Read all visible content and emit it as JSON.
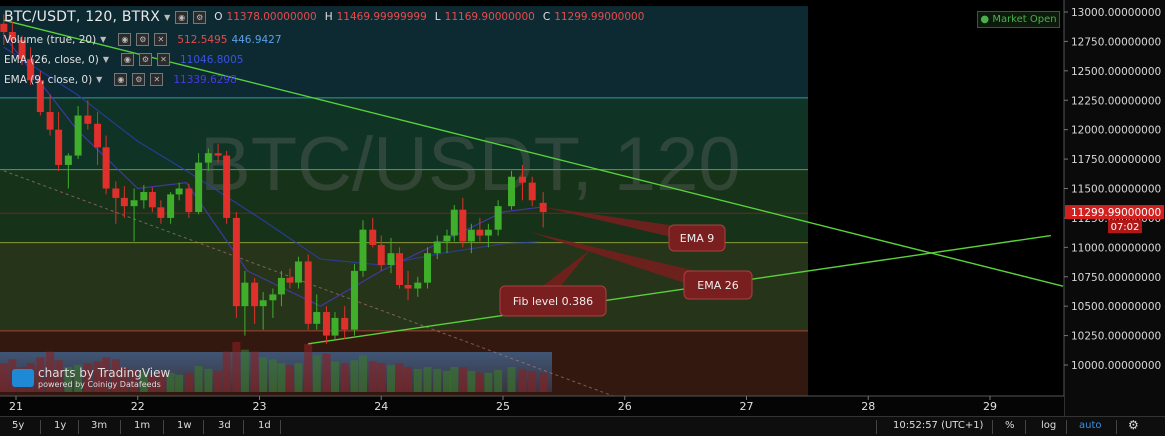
{
  "header": {
    "symbol": "BTC/USDT, 120, BTRX",
    "ohlc": {
      "o_label": "O",
      "o": "11378.00000000",
      "h_label": "H",
      "h": "11469.99999999",
      "l_label": "L",
      "l": "11169.90000000",
      "c_label": "C",
      "c": "11299.99000000"
    }
  },
  "indicators": [
    {
      "label": "Volume (true, 20)",
      "values": [
        "512.5495",
        "446.9427"
      ]
    },
    {
      "label": "EMA (26, close, 0)",
      "values": [
        "11046.8005"
      ]
    },
    {
      "label": "EMA (9, close, 0)",
      "values": [
        "11339.6298"
      ]
    }
  ],
  "market_status": "Market Open",
  "watermark_symbol": "BTC/USDT, 120",
  "price_axis": {
    "ticks": [
      "13000.00000000",
      "12750.00000000",
      "12500.00000000",
      "12250.00000000",
      "12000.00000000",
      "11750.00000000",
      "11500.00000000",
      "11250.00000000",
      "11000.00000000",
      "10750.00000000",
      "10500.00000000",
      "10250.00000000",
      "10000.00000000"
    ],
    "current_price": "11299.99000000",
    "countdown": "07:02"
  },
  "time_axis": {
    "ticks": [
      "21",
      "22",
      "23",
      "24",
      "25",
      "26",
      "27",
      "28",
      "29"
    ]
  },
  "annotations": [
    {
      "text": "EMA 9"
    },
    {
      "text": "EMA 26"
    },
    {
      "text": "Fib level 0.386"
    }
  ],
  "attribution": {
    "line1": "charts by TradingView",
    "line2": "powered by Coinigy Datafeeds"
  },
  "bottom_bar": {
    "ranges": [
      "5y",
      "1y",
      "3m",
      "1m",
      "1w",
      "3d",
      "1d"
    ],
    "clock": "10:52:57 (UTC+1)",
    "percent": "%",
    "log": "log",
    "auto": "auto",
    "settings_icon": "gear-icon"
  },
  "colors": {
    "up": "#3fae2a",
    "down": "#e0302b",
    "trendline": "#59d23a",
    "current_price_bg": "#d02020",
    "annotation_bg": "#7a1f1f"
  },
  "chart_data": {
    "type": "candlestick",
    "title": "BTC/USDT, 120, BTRX",
    "ylim": [
      9700,
      13050
    ],
    "x_ticks": [
      "21",
      "22",
      "23",
      "24",
      "25",
      "26",
      "27",
      "28",
      "29"
    ],
    "fib_levels": [
      12270,
      11660,
      11040,
      10290
    ],
    "candles": [
      [
        20.9,
        12900,
        12980,
        12720,
        12830
      ],
      [
        20.97,
        12830,
        12920,
        12650,
        12760
      ],
      [
        21.05,
        12760,
        12800,
        12550,
        12600
      ],
      [
        21.12,
        12600,
        12700,
        12380,
        12420
      ],
      [
        21.2,
        12420,
        12500,
        12120,
        12150
      ],
      [
        21.28,
        12150,
        12300,
        11950,
        12000
      ],
      [
        21.35,
        12000,
        12150,
        11650,
        11700
      ],
      [
        21.43,
        11700,
        11800,
        11500,
        11780
      ],
      [
        21.51,
        11780,
        12200,
        11750,
        12120
      ],
      [
        21.59,
        12120,
        12250,
        12000,
        12050
      ],
      [
        21.67,
        12050,
        12150,
        11700,
        11850
      ],
      [
        21.74,
        11850,
        11950,
        11450,
        11500
      ],
      [
        21.82,
        11500,
        11560,
        11200,
        11420
      ],
      [
        21.89,
        11420,
        11520,
        11250,
        11350
      ],
      [
        21.97,
        11350,
        11500,
        11050,
        11400
      ],
      [
        22.05,
        11400,
        11530,
        11330,
        11470
      ],
      [
        22.12,
        11470,
        11510,
        11300,
        11340
      ],
      [
        22.19,
        11340,
        11400,
        11200,
        11250
      ],
      [
        22.27,
        11250,
        11470,
        11200,
        11450
      ],
      [
        22.34,
        11450,
        11550,
        11400,
        11500
      ],
      [
        22.42,
        11500,
        11540,
        11250,
        11300
      ],
      [
        22.5,
        11300,
        11800,
        11280,
        11720
      ],
      [
        22.58,
        11720,
        11840,
        11650,
        11800
      ],
      [
        22.66,
        11800,
        11880,
        11720,
        11780
      ],
      [
        22.73,
        11780,
        11820,
        11200,
        11250
      ],
      [
        22.81,
        11250,
        11300,
        10400,
        10500
      ],
      [
        22.88,
        10500,
        10800,
        10250,
        10700
      ],
      [
        22.96,
        10700,
        10740,
        10350,
        10500
      ],
      [
        23.03,
        10500,
        10620,
        10300,
        10550
      ],
      [
        23.11,
        10550,
        10650,
        10400,
        10600
      ],
      [
        23.18,
        10600,
        10800,
        10500,
        10740
      ],
      [
        23.25,
        10740,
        10820,
        10650,
        10700
      ],
      [
        23.32,
        10700,
        10920,
        10650,
        10880
      ],
      [
        23.4,
        10880,
        10940,
        10300,
        10350
      ],
      [
        23.47,
        10350,
        10600,
        10300,
        10450
      ],
      [
        23.55,
        10450,
        10500,
        10180,
        10250
      ],
      [
        23.62,
        10250,
        10450,
        10220,
        10400
      ],
      [
        23.7,
        10400,
        10500,
        10220,
        10300
      ],
      [
        23.78,
        10300,
        10860,
        10250,
        10800
      ],
      [
        23.85,
        10800,
        11230,
        10750,
        11150
      ],
      [
        23.93,
        11150,
        11250,
        11000,
        11020
      ],
      [
        24.0,
        11020,
        11100,
        10800,
        10850
      ],
      [
        24.08,
        10850,
        11080,
        10780,
        10950
      ],
      [
        24.15,
        10950,
        11000,
        10650,
        10680
      ],
      [
        24.22,
        10680,
        10800,
        10550,
        10650
      ],
      [
        24.3,
        10650,
        10750,
        10580,
        10700
      ],
      [
        24.38,
        10700,
        11000,
        10650,
        10950
      ],
      [
        24.46,
        10950,
        11100,
        10900,
        11050
      ],
      [
        24.54,
        11050,
        11150,
        10950,
        11100
      ],
      [
        24.6,
        11100,
        11360,
        11050,
        11320
      ],
      [
        24.67,
        11320,
        11420,
        11000,
        11050
      ],
      [
        24.74,
        11050,
        11200,
        10950,
        11150
      ],
      [
        24.81,
        11150,
        11250,
        11050,
        11100
      ],
      [
        24.88,
        11100,
        11200,
        11000,
        11150
      ],
      [
        24.96,
        11150,
        11400,
        11100,
        11350
      ],
      [
        25.07,
        11350,
        11650,
        11320,
        11600
      ],
      [
        25.16,
        11600,
        11700,
        11400,
        11550
      ],
      [
        25.24,
        11550,
        11600,
        11350,
        11400
      ],
      [
        25.33,
        11378,
        11469,
        11169,
        11300
      ]
    ],
    "volume": [
      [
        20.9,
        300,
        "down"
      ],
      [
        20.97,
        340,
        "down"
      ],
      [
        21.05,
        260,
        "down"
      ],
      [
        21.12,
        300,
        "down"
      ],
      [
        21.2,
        360,
        "down"
      ],
      [
        21.28,
        420,
        "down"
      ],
      [
        21.35,
        330,
        "down"
      ],
      [
        21.43,
        260,
        "up"
      ],
      [
        21.51,
        280,
        "up"
      ],
      [
        21.59,
        300,
        "down"
      ],
      [
        21.67,
        320,
        "down"
      ],
      [
        21.74,
        360,
        "down"
      ],
      [
        21.82,
        340,
        "down"
      ],
      [
        21.89,
        250,
        "down"
      ],
      [
        21.97,
        230,
        "down"
      ],
      [
        22.05,
        210,
        "up"
      ],
      [
        22.12,
        180,
        "down"
      ],
      [
        22.19,
        220,
        "down"
      ],
      [
        22.27,
        200,
        "up"
      ],
      [
        22.34,
        180,
        "up"
      ],
      [
        22.42,
        200,
        "down"
      ],
      [
        22.5,
        270,
        "up"
      ],
      [
        22.58,
        240,
        "up"
      ],
      [
        22.66,
        220,
        "down"
      ],
      [
        22.73,
        420,
        "down"
      ],
      [
        22.81,
        520,
        "down"
      ],
      [
        22.88,
        440,
        "up"
      ],
      [
        22.96,
        420,
        "down"
      ],
      [
        23.03,
        360,
        "up"
      ],
      [
        23.11,
        340,
        "up"
      ],
      [
        23.18,
        300,
        "up"
      ],
      [
        23.25,
        280,
        "down"
      ],
      [
        23.32,
        300,
        "up"
      ],
      [
        23.4,
        500,
        "down"
      ],
      [
        23.47,
        380,
        "up"
      ],
      [
        23.55,
        400,
        "down"
      ],
      [
        23.62,
        320,
        "up"
      ],
      [
        23.7,
        300,
        "down"
      ],
      [
        23.78,
        330,
        "up"
      ],
      [
        23.85,
        380,
        "up"
      ],
      [
        23.93,
        320,
        "down"
      ],
      [
        24.0,
        300,
        "down"
      ],
      [
        24.08,
        280,
        "up"
      ],
      [
        24.15,
        300,
        "down"
      ],
      [
        24.22,
        260,
        "down"
      ],
      [
        24.3,
        240,
        "up"
      ],
      [
        24.38,
        260,
        "up"
      ],
      [
        24.46,
        240,
        "up"
      ],
      [
        24.54,
        220,
        "up"
      ],
      [
        24.6,
        260,
        "up"
      ],
      [
        24.67,
        260,
        "down"
      ],
      [
        24.74,
        220,
        "up"
      ],
      [
        24.81,
        200,
        "down"
      ],
      [
        24.88,
        200,
        "up"
      ],
      [
        24.96,
        230,
        "up"
      ],
      [
        25.07,
        260,
        "up"
      ],
      [
        25.16,
        240,
        "down"
      ],
      [
        25.24,
        220,
        "down"
      ],
      [
        25.33,
        200,
        "down"
      ]
    ],
    "trendlines": [
      {
        "x": [
          20.9,
          29.6
        ],
        "y": [
          12930,
          10670
        ]
      },
      {
        "x": [
          23.4,
          29.5
        ],
        "y": [
          10180,
          11100
        ]
      },
      {
        "x": [
          20.9,
          26.0
        ],
        "y": [
          11650,
          9700
        ],
        "dashed": true
      }
    ],
    "ema26": {
      "x": [
        20.9,
        21.5,
        22.0,
        22.4,
        23.0,
        23.5,
        24.0,
        24.5,
        25.0,
        25.3
      ],
      "y": [
        12700,
        12300,
        11900,
        11650,
        11250,
        10900,
        10850,
        10950,
        11030,
        11047
      ]
    },
    "ema9": {
      "x": [
        20.9,
        21.5,
        22.0,
        22.4,
        22.9,
        23.5,
        24.0,
        24.5,
        25.0,
        25.3
      ],
      "y": [
        12800,
        12000,
        11500,
        11550,
        10800,
        10500,
        10800,
        11050,
        11300,
        11340
      ]
    }
  }
}
